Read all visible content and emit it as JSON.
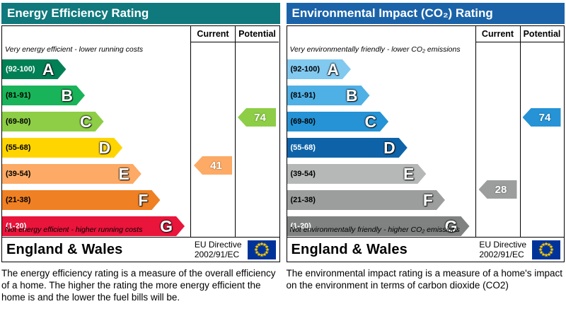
{
  "chart_data": [
    {
      "type": "bar",
      "title": "Energy Efficiency Rating",
      "header_color": "#10797d",
      "columns": {
        "current": "Current",
        "potential": "Potential"
      },
      "top_note": "Very energy efficient - lower running costs",
      "bottom_note": "Not energy efficient - higher running costs",
      "bands": [
        {
          "letter": "A",
          "range": "(92-100)",
          "color": "#008054",
          "label_color": "#ffffff",
          "width_pct": 34
        },
        {
          "letter": "B",
          "range": "(81-91)",
          "color": "#19b459",
          "label_color": "#000000",
          "width_pct": 44
        },
        {
          "letter": "C",
          "range": "(69-80)",
          "color": "#8dce46",
          "label_color": "#000000",
          "width_pct": 54
        },
        {
          "letter": "D",
          "range": "(55-68)",
          "color": "#ffd500",
          "label_color": "#000000",
          "width_pct": 64
        },
        {
          "letter": "E",
          "range": "(39-54)",
          "color": "#fcaa65",
          "label_color": "#000000",
          "width_pct": 74
        },
        {
          "letter": "F",
          "range": "(21-38)",
          "color": "#ef8023",
          "label_color": "#000000",
          "width_pct": 84
        },
        {
          "letter": "G",
          "range": "(1-20)",
          "color": "#e9153b",
          "label_color": "#ffffff",
          "width_pct": 97
        }
      ],
      "current": {
        "value": 41,
        "band": "E",
        "color": "#fcaa65"
      },
      "potential": {
        "value": 74,
        "band": "C",
        "color": "#8dce46"
      },
      "footer": {
        "region": "England & Wales",
        "directive_line1": "EU Directive",
        "directive_line2": "2002/91/EC",
        "flag_icon": "eu-flag"
      },
      "description": "The energy efficiency rating is a measure of the overall efficiency of a home.  The higher the rating the more energy efficient the home is and the lower the fuel bills will be."
    },
    {
      "type": "bar",
      "title": "Environmental Impact (CO₂) Rating",
      "header_color": "#1b63a9",
      "columns": {
        "current": "Current",
        "potential": "Potential"
      },
      "top_note": "Very environmentally friendly - lower CO₂ emissions",
      "bottom_note": "Not environmentally friendly - higher CO₂ emissions",
      "bands": [
        {
          "letter": "A",
          "range": "(92-100)",
          "color": "#82c9f0",
          "label_color": "#000000",
          "width_pct": 34
        },
        {
          "letter": "B",
          "range": "(81-91)",
          "color": "#4fb0e5",
          "label_color": "#000000",
          "width_pct": 44
        },
        {
          "letter": "C",
          "range": "(69-80)",
          "color": "#2593d5",
          "label_color": "#000000",
          "width_pct": 54
        },
        {
          "letter": "D",
          "range": "(55-68)",
          "color": "#0e63a8",
          "label_color": "#ffffff",
          "width_pct": 64
        },
        {
          "letter": "E",
          "range": "(39-54)",
          "color": "#b5b8b7",
          "label_color": "#000000",
          "width_pct": 74
        },
        {
          "letter": "F",
          "range": "(21-38)",
          "color": "#9b9e9d",
          "label_color": "#000000",
          "width_pct": 84
        },
        {
          "letter": "G",
          "range": "(1-20)",
          "color": "#7f8281",
          "label_color": "#ffffff",
          "width_pct": 97
        }
      ],
      "current": {
        "value": 28,
        "band": "F",
        "color": "#9b9e9d"
      },
      "potential": {
        "value": 74,
        "band": "C",
        "color": "#2593d5"
      },
      "footer": {
        "region": "England & Wales",
        "directive_line1": "EU Directive",
        "directive_line2": "2002/91/EC",
        "flag_icon": "eu-flag"
      },
      "description": "The environmental impact rating is a measure of a home's impact on the environment in terms of carbon dioxide (CO2)"
    }
  ]
}
